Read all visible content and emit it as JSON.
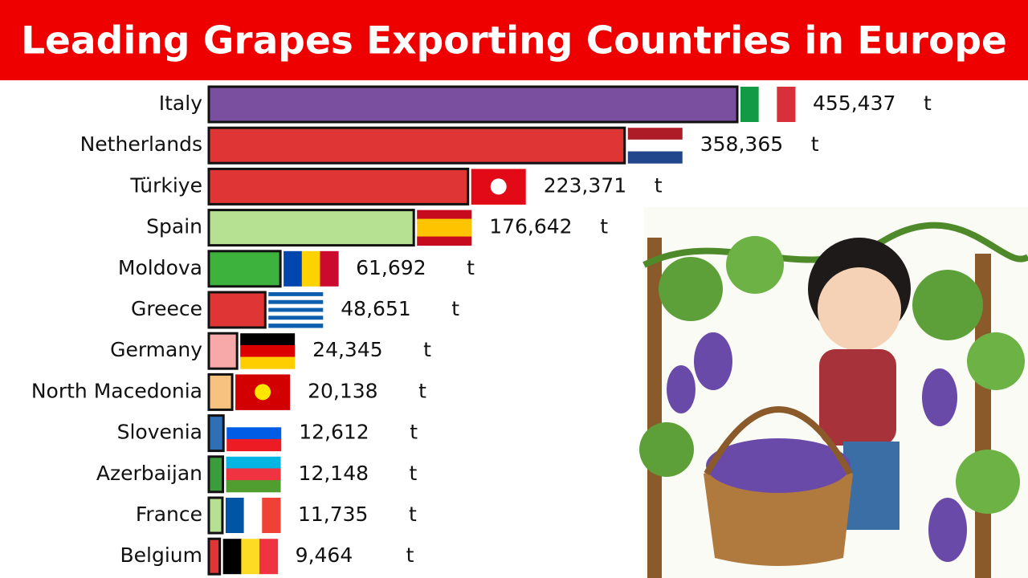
{
  "chart_data": {
    "type": "hbar",
    "title": "Leading Grapes Exporting Countries in Europe",
    "categories": [
      "Italy",
      "Netherlands",
      "Türkiye",
      "Spain",
      "Moldova",
      "Greece",
      "Germany",
      "North Macedonia",
      "Slovenia",
      "Azerbaijan",
      "France",
      "Belgium"
    ],
    "values": [
      455437,
      358365,
      223371,
      176642,
      61692,
      48651,
      24345,
      20138,
      12612,
      12148,
      11735,
      9464
    ],
    "value_labels": [
      "455,437",
      "358,365",
      "223,371",
      "176,642",
      "61,692",
      "48,651",
      "24,345",
      "20,138",
      "12,612",
      "12,148",
      "11,735",
      "9,464"
    ],
    "unit": "t",
    "colors": [
      "#7b4fa0",
      "#e03535",
      "#e03535",
      "#b7e192",
      "#3db33d",
      "#e03535",
      "#f7a8a8",
      "#f7c27f",
      "#2f6fb5",
      "#3a9c3a",
      "#b7e192",
      "#e03535"
    ]
  }
}
